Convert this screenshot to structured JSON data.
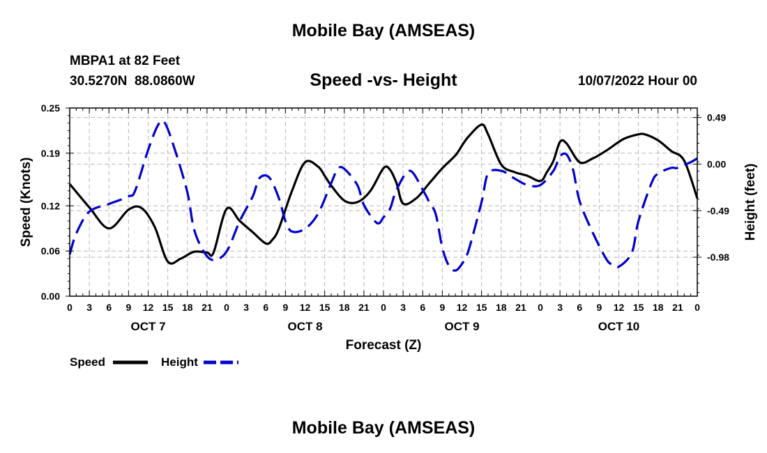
{
  "page": {
    "title": "Mobile Bay (AMSEAS)",
    "station": "MBPA1 at 82 Feet",
    "coords": "30.5270N  88.0860W",
    "timestamp": "10/07/2022 Hour 00",
    "footer_title": "Mobile Bay (AMSEAS)"
  },
  "chart_data": {
    "type": "line",
    "title": "Speed -vs- Height",
    "xlabel": "Forecast (Z)",
    "ylabel_left": "Speed (Knots)",
    "ylabel_right": "Height (feet)",
    "x_unit": "hours from 10/07/2022 00Z",
    "xlim": [
      0,
      96
    ],
    "ylim_left": [
      0,
      0.25
    ],
    "ylim_right": [
      -1.39,
      0.59
    ],
    "x_ticks": [
      0,
      3,
      6,
      9,
      12,
      15,
      18,
      21,
      24,
      27,
      30,
      33,
      36,
      39,
      42,
      45,
      48,
      51,
      54,
      57,
      60,
      63,
      66,
      69,
      72,
      75,
      78,
      81,
      84,
      87,
      90,
      93,
      96
    ],
    "x_tick_labels": [
      "0",
      "3",
      "6",
      "9",
      "12",
      "15",
      "18",
      "21",
      "0",
      "3",
      "6",
      "9",
      "12",
      "15",
      "18",
      "21",
      "0",
      "3",
      "6",
      "9",
      "12",
      "15",
      "18",
      "21",
      "0",
      "3",
      "6",
      "9",
      "12",
      "15",
      "18",
      "21",
      "0"
    ],
    "day_labels": [
      {
        "x": 12,
        "label": "OCT 7"
      },
      {
        "x": 36,
        "label": "OCT 8"
      },
      {
        "x": 60,
        "label": "OCT 9"
      },
      {
        "x": 84,
        "label": "OCT 10"
      }
    ],
    "y_ticks_left": [
      0.0,
      0.06,
      0.12,
      0.19,
      0.25
    ],
    "y_tick_labels_left": [
      "0.00",
      "0.06",
      "0.12",
      "0.19",
      "0.25"
    ],
    "y_ticks_right": [
      0.49,
      0.0,
      -0.49,
      -0.98
    ],
    "y_tick_labels_right": [
      "0.49",
      "0.00",
      "-0.49",
      "-0.98"
    ],
    "grid": true,
    "legend_position": "bottom-left",
    "series": [
      {
        "name": "Speed",
        "axis": "left",
        "color": "#000000",
        "style": "solid",
        "x": [
          0,
          3,
          6,
          9,
          11,
          13,
          15,
          17,
          19,
          21,
          22,
          24,
          26,
          28,
          30,
          31,
          32,
          34,
          36,
          38,
          39,
          40,
          42,
          44,
          46,
          48,
          49,
          50,
          51,
          53,
          55,
          57,
          59,
          60,
          61,
          63,
          64,
          66,
          68,
          70,
          72,
          73,
          74,
          75,
          76,
          78,
          80,
          82,
          84,
          85,
          87,
          88,
          90,
          92,
          94,
          96
        ],
        "y": [
          0.149,
          0.118,
          0.09,
          0.115,
          0.117,
          0.092,
          0.046,
          0.05,
          0.059,
          0.058,
          0.058,
          0.116,
          0.1,
          0.085,
          0.07,
          0.075,
          0.09,
          0.14,
          0.178,
          0.172,
          0.16,
          0.147,
          0.127,
          0.125,
          0.14,
          0.17,
          0.168,
          0.15,
          0.123,
          0.13,
          0.15,
          0.17,
          0.187,
          0.2,
          0.212,
          0.228,
          0.215,
          0.175,
          0.165,
          0.16,
          0.153,
          0.165,
          0.18,
          0.205,
          0.203,
          0.178,
          0.183,
          0.193,
          0.205,
          0.21,
          0.215,
          0.215,
          0.207,
          0.193,
          0.18,
          0.13
        ],
        "_note_y_left": true
      },
      {
        "name": "Height",
        "axis": "right",
        "color": "#0000cc",
        "style": "dashed",
        "x": [
          0,
          1,
          3,
          6,
          9,
          10,
          12,
          13.5,
          14.5,
          16,
          18,
          19,
          20.5,
          22,
          24,
          26,
          28,
          29,
          30.5,
          32,
          33,
          34,
          36,
          38,
          40,
          41,
          42,
          44,
          45,
          47,
          48,
          49,
          50,
          52,
          54,
          55,
          56,
          57,
          58,
          59,
          60,
          61,
          63,
          64,
          66,
          68,
          70,
          72,
          74,
          75,
          76,
          77,
          78,
          80,
          82,
          83,
          84,
          86,
          87,
          89,
          90,
          92,
          93,
          95,
          96
        ],
        "y": [
          -0.95,
          -0.73,
          -0.5,
          -0.42,
          -0.34,
          -0.28,
          0.15,
          0.41,
          0.44,
          0.17,
          -0.3,
          -0.68,
          -0.92,
          -1.01,
          -0.92,
          -0.6,
          -0.34,
          -0.15,
          -0.14,
          -0.36,
          -0.6,
          -0.71,
          -0.68,
          -0.52,
          -0.2,
          -0.05,
          -0.05,
          -0.22,
          -0.43,
          -0.62,
          -0.56,
          -0.47,
          -0.27,
          -0.07,
          -0.27,
          -0.4,
          -0.53,
          -0.88,
          -1.07,
          -1.12,
          -1.05,
          -0.91,
          -0.4,
          -0.1,
          -0.07,
          -0.15,
          -0.22,
          -0.22,
          -0.07,
          0.08,
          0.1,
          -0.06,
          -0.39,
          -0.72,
          -0.99,
          -1.06,
          -1.08,
          -0.93,
          -0.6,
          -0.2,
          -0.1,
          -0.04,
          -0.04,
          0.02,
          0.06
        ]
      }
    ],
    "legend": [
      {
        "label": "Speed",
        "color": "#000000",
        "style": "solid"
      },
      {
        "label": "Height",
        "color": "#0000cc",
        "style": "dashed"
      }
    ]
  }
}
